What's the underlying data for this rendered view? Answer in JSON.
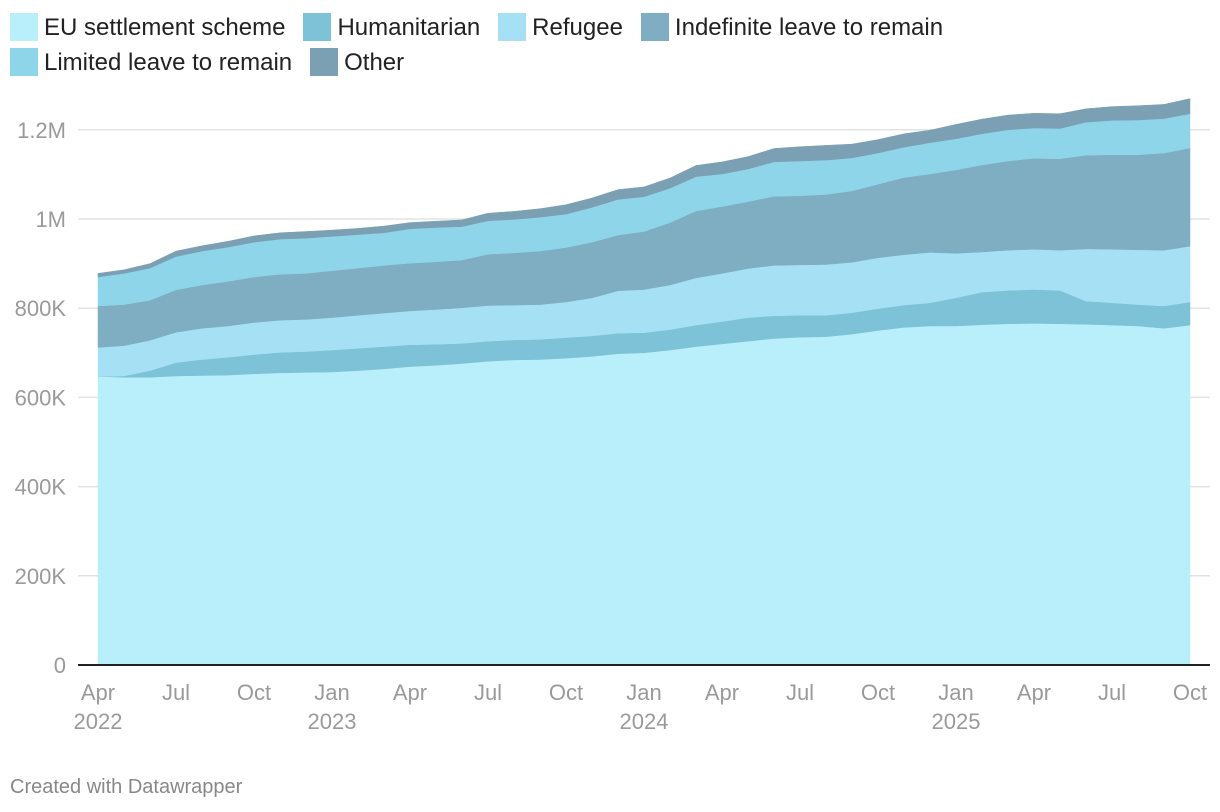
{
  "chart_data": {
    "type": "area",
    "stacked": true,
    "x": [
      "2022-04",
      "2022-05",
      "2022-06",
      "2022-07",
      "2022-08",
      "2022-09",
      "2022-10",
      "2022-11",
      "2022-12",
      "2023-01",
      "2023-02",
      "2023-03",
      "2023-04",
      "2023-05",
      "2023-06",
      "2023-07",
      "2023-08",
      "2023-09",
      "2023-10",
      "2023-11",
      "2023-12",
      "2024-01",
      "2024-02",
      "2024-03",
      "2024-04",
      "2024-05",
      "2024-06",
      "2024-07",
      "2024-08",
      "2024-09",
      "2024-10",
      "2024-11",
      "2024-12",
      "2025-01",
      "2025-02",
      "2025-03",
      "2025-04",
      "2025-05",
      "2025-06",
      "2025-07",
      "2025-08",
      "2025-09",
      "2025-10"
    ],
    "series": [
      {
        "name": "EU settlement scheme",
        "color": "#b8effb",
        "values": [
          647,
          645,
          645,
          648,
          649,
          650,
          653,
          655,
          656,
          657,
          660,
          664,
          669,
          672,
          676,
          681,
          684,
          685,
          688,
          692,
          698,
          700,
          706,
          714,
          720,
          726,
          732,
          735,
          736,
          742,
          750,
          757,
          760,
          760,
          763,
          765,
          766,
          765,
          764,
          762,
          760,
          755,
          762
        ]
      },
      {
        "name": "Humanitarian",
        "color": "#7ec2d7",
        "values": [
          0,
          3,
          15,
          30,
          36,
          40,
          43,
          46,
          47,
          49,
          50,
          50,
          49,
          47,
          45,
          45,
          45,
          45,
          46,
          46,
          46,
          45,
          46,
          48,
          50,
          53,
          51,
          49,
          48,
          48,
          49,
          50,
          52,
          63,
          73,
          75,
          76,
          75,
          52,
          50,
          48,
          50,
          52
        ]
      },
      {
        "name": "Refugee",
        "color": "#a6e0f5",
        "values": [
          65,
          68,
          68,
          68,
          70,
          70,
          72,
          72,
          72,
          73,
          74,
          75,
          76,
          78,
          80,
          80,
          78,
          78,
          80,
          85,
          95,
          97,
          100,
          106,
          108,
          110,
          113,
          113,
          114,
          113,
          114,
          113,
          113,
          100,
          90,
          90,
          90,
          90,
          117,
          120,
          123,
          125,
          125
        ]
      },
      {
        "name": "Indefinite leave to remain",
        "color": "#7fadc1",
        "values": [
          93,
          92,
          90,
          95,
          97,
          100,
          102,
          103,
          103,
          105,
          106,
          107,
          107,
          107,
          107,
          115,
          117,
          120,
          122,
          125,
          125,
          130,
          140,
          150,
          150,
          150,
          155,
          155,
          157,
          160,
          165,
          173,
          176,
          187,
          195,
          200,
          204,
          205,
          210,
          212,
          213,
          218,
          220
        ]
      },
      {
        "name": "Limited leave to remain",
        "color": "#8ed5ea",
        "values": [
          65,
          70,
          72,
          75,
          76,
          77,
          78,
          79,
          79,
          77,
          75,
          73,
          77,
          77,
          75,
          75,
          75,
          76,
          75,
          78,
          80,
          78,
          77,
          77,
          73,
          73,
          77,
          78,
          77,
          74,
          70,
          68,
          70,
          70,
          70,
          70,
          68,
          68,
          74,
          77,
          78,
          77,
          77
        ]
      },
      {
        "name": "Other",
        "color": "#7b9fb3",
        "values": [
          8,
          8,
          10,
          12,
          12,
          13,
          14,
          14,
          15,
          14,
          14,
          15,
          14,
          14,
          15,
          17,
          18,
          19,
          21,
          21,
          22,
          22,
          23,
          25,
          27,
          28,
          30,
          32,
          33,
          31,
          30,
          30,
          28,
          32,
          33,
          33,
          33,
          33,
          30,
          31,
          32,
          32,
          34
        ]
      }
    ],
    "units_note": "values in thousands",
    "xlim": [
      "2022-04",
      "2025-10"
    ],
    "ylim": [
      0,
      1200000
    ],
    "y_ticks": [
      {
        "value": 0,
        "label": "0"
      },
      {
        "value": 200000,
        "label": "200K"
      },
      {
        "value": 400000,
        "label": "400K"
      },
      {
        "value": 600000,
        "label": "600K"
      },
      {
        "value": 800000,
        "label": "800K"
      },
      {
        "value": 1000000,
        "label": "1M"
      },
      {
        "value": 1200000,
        "label": "1.2M"
      }
    ],
    "x_ticks": [
      {
        "x": "2022-04",
        "label": "Apr",
        "year": "2022"
      },
      {
        "x": "2022-07",
        "label": "Jul",
        "year": ""
      },
      {
        "x": "2022-10",
        "label": "Oct",
        "year": ""
      },
      {
        "x": "2023-01",
        "label": "Jan",
        "year": "2023"
      },
      {
        "x": "2023-04",
        "label": "Apr",
        "year": ""
      },
      {
        "x": "2023-07",
        "label": "Jul",
        "year": ""
      },
      {
        "x": "2023-10",
        "label": "Oct",
        "year": ""
      },
      {
        "x": "2024-01",
        "label": "Jan",
        "year": "2024"
      },
      {
        "x": "2024-04",
        "label": "Apr",
        "year": ""
      },
      {
        "x": "2024-07",
        "label": "Jul",
        "year": ""
      },
      {
        "x": "2024-10",
        "label": "Oct",
        "year": ""
      },
      {
        "x": "2025-01",
        "label": "Jan",
        "year": "2025"
      },
      {
        "x": "2025-04",
        "label": "Apr",
        "year": ""
      },
      {
        "x": "2025-07",
        "label": "Jul",
        "year": ""
      },
      {
        "x": "2025-10",
        "label": "Oct",
        "year": ""
      }
    ],
    "grid": true,
    "legend": "top-left"
  },
  "credit": "Created with Datawrapper"
}
